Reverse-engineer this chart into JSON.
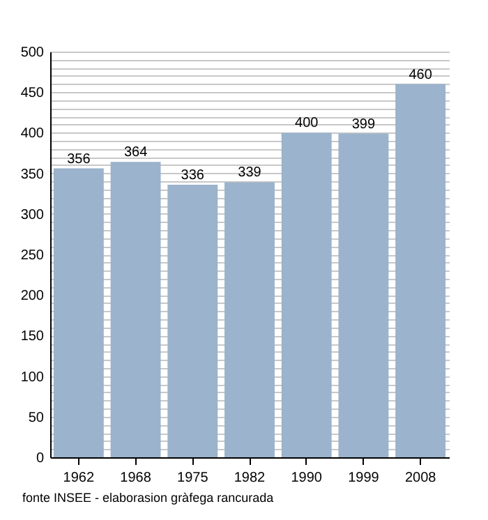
{
  "chart_data": {
    "type": "bar",
    "categories": [
      "1962",
      "1968",
      "1975",
      "1982",
      "1990",
      "1999",
      "2008"
    ],
    "values": [
      356,
      364,
      336,
      339,
      400,
      399,
      460
    ],
    "color": "#9bb3cc",
    "ylim": [
      0,
      500
    ],
    "yticks": [
      0,
      {
        "value": 10,
        "label": null
      },
      {
        "value": 20,
        "label": null
      },
      {
        "value": 30,
        "label": null
      },
      {
        "value": 40,
        "label": null
      },
      50,
      {
        "value": 60,
        "label": null
      },
      {
        "value": 70,
        "label": null
      },
      {
        "value": 80,
        "label": null
      },
      {
        "value": 90,
        "label": null
      },
      100,
      {
        "value": 110,
        "label": null
      },
      {
        "value": 120,
        "label": null
      },
      {
        "value": 130,
        "label": null
      },
      {
        "value": 140,
        "label": null
      },
      150,
      {
        "value": 160,
        "label": null
      },
      {
        "value": 170,
        "label": null
      },
      {
        "value": 180,
        "label": null
      },
      {
        "value": 190,
        "label": null
      },
      200,
      {
        "value": 210,
        "label": null
      },
      {
        "value": 220,
        "label": null
      },
      {
        "value": 230,
        "label": null
      },
      {
        "value": 240,
        "label": null
      },
      250,
      {
        "value": 260,
        "label": null
      },
      {
        "value": 270,
        "label": null
      },
      {
        "value": 280,
        "label": null
      },
      {
        "value": 290,
        "label": null
      },
      300,
      {
        "value": 310,
        "label": null
      },
      {
        "value": 320,
        "label": null
      },
      {
        "value": 330,
        "label": null
      },
      {
        "value": 340,
        "label": null
      },
      350,
      {
        "value": 360,
        "label": null
      },
      {
        "value": 370,
        "label": null
      },
      {
        "value": 380,
        "label": null
      },
      {
        "value": 390,
        "label": null
      },
      400,
      {
        "value": 410,
        "label": null
      },
      {
        "value": 420,
        "label": null
      },
      {
        "value": 430,
        "label": null
      },
      {
        "value": 440,
        "label": null
      },
      450,
      {
        "value": 460,
        "label": null
      },
      {
        "value": 470,
        "label": null
      },
      {
        "value": 480,
        "label": null
      },
      {
        "value": 490,
        "label": null
      },
      500
    ],
    "grid": true,
    "data_labels": true,
    "annotations": [
      "fonte INSEE - elaborasion gràfega rancurada"
    ]
  }
}
